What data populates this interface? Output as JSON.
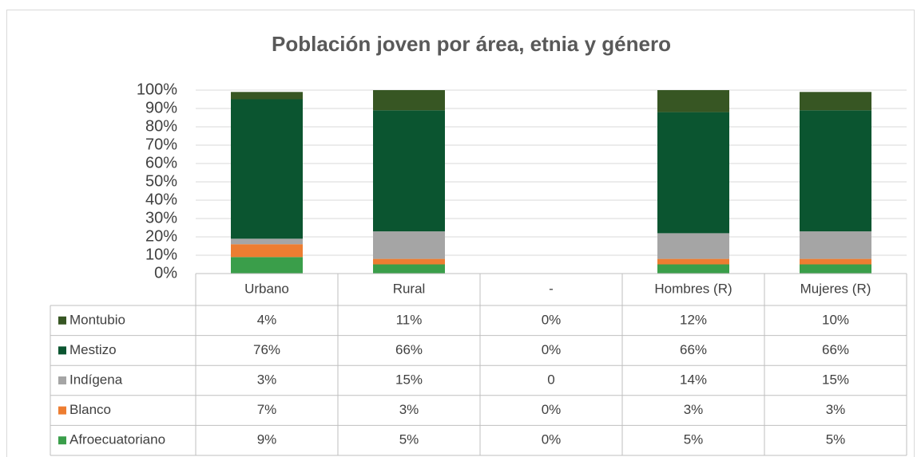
{
  "chart_data": {
    "type": "bar",
    "stacked": true,
    "title": "Población joven por área, etnia y género",
    "categories": [
      "Urbano",
      "Rural",
      "-",
      "Hombres (R)",
      "Mujeres (R)"
    ],
    "series": [
      {
        "name": "Afroecuatoriano",
        "color": "#3a9e4a",
        "values": [
          9,
          5,
          0,
          5,
          5
        ],
        "value_labels": [
          "9%",
          "5%",
          "0%",
          "5%",
          "5%"
        ]
      },
      {
        "name": "Blanco",
        "color": "#ed7d31",
        "values": [
          7,
          3,
          0,
          3,
          3
        ],
        "value_labels": [
          "7%",
          "3%",
          "0%",
          "3%",
          "3%"
        ]
      },
      {
        "name": "Indígena",
        "color": "#a5a5a5",
        "values": [
          3,
          15,
          0,
          14,
          15
        ],
        "value_labels": [
          "3%",
          "15%",
          "0",
          "14%",
          "15%"
        ]
      },
      {
        "name": "Mestizo",
        "color": "#0b5530",
        "values": [
          76,
          66,
          0,
          66,
          66
        ],
        "value_labels": [
          "76%",
          "66%",
          "0%",
          "66%",
          "66%"
        ]
      },
      {
        "name": "Montubio",
        "color": "#375623",
        "values": [
          4,
          11,
          0,
          12,
          10
        ],
        "value_labels": [
          "4%",
          "11%",
          "0%",
          "12%",
          "10%"
        ]
      }
    ],
    "ylim": [
      0,
      100
    ],
    "yticks": [
      {
        "value": 0,
        "label": "0%"
      },
      {
        "value": 10,
        "label": "10%"
      },
      {
        "value": 20,
        "label": "20%"
      },
      {
        "value": 30,
        "label": "30%"
      },
      {
        "value": 40,
        "label": "40%"
      },
      {
        "value": 50,
        "label": "50%"
      },
      {
        "value": 60,
        "label": "60%"
      },
      {
        "value": 70,
        "label": "70%"
      },
      {
        "value": 80,
        "label": "80%"
      },
      {
        "value": 90,
        "label": "90%"
      },
      {
        "value": 100,
        "label": "100%"
      }
    ],
    "grid": true
  }
}
